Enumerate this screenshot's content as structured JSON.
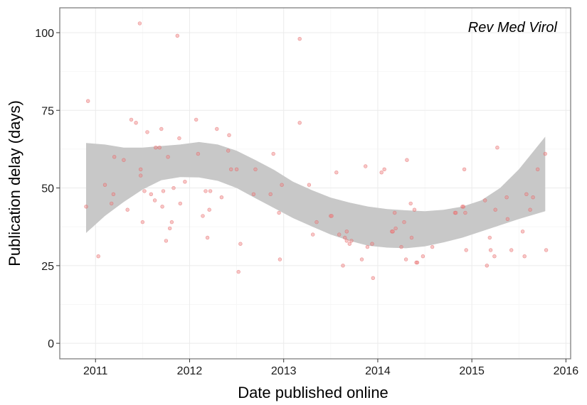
{
  "chart_data": {
    "type": "scatter",
    "title": "",
    "xlabel": "Date published online",
    "ylabel": "Publication delay (days)",
    "annotation": "Rev Med Virol",
    "xlim": [
      2010.62,
      2016.05
    ],
    "ylim": [
      -5,
      108
    ],
    "x_ticks": [
      2011,
      2012,
      2013,
      2014,
      2015,
      2016
    ],
    "x_tick_labels": [
      "2011",
      "2012",
      "2013",
      "2014",
      "2015",
      "2016"
    ],
    "y_ticks": [
      0,
      25,
      50,
      75,
      100
    ],
    "y_tick_labels": [
      "0",
      "25",
      "50",
      "75",
      "100"
    ],
    "grid": true,
    "legend": "none",
    "colors": {
      "points": "#f08080",
      "ribbon": "#c8c8c8",
      "panel_border": "#7f7f7f",
      "grid": "#ebebeb"
    },
    "points": [
      {
        "x": 2010.9,
        "y": 44
      },
      {
        "x": 2010.92,
        "y": 78
      },
      {
        "x": 2011.03,
        "y": 28
      },
      {
        "x": 2011.1,
        "y": 51
      },
      {
        "x": 2011.17,
        "y": 45
      },
      {
        "x": 2011.19,
        "y": 48
      },
      {
        "x": 2011.2,
        "y": 60
      },
      {
        "x": 2011.3,
        "y": 59
      },
      {
        "x": 2011.34,
        "y": 43
      },
      {
        "x": 2011.38,
        "y": 72
      },
      {
        "x": 2011.43,
        "y": 71
      },
      {
        "x": 2011.47,
        "y": 103
      },
      {
        "x": 2011.48,
        "y": 54
      },
      {
        "x": 2011.48,
        "y": 56
      },
      {
        "x": 2011.5,
        "y": 39
      },
      {
        "x": 2011.52,
        "y": 49
      },
      {
        "x": 2011.55,
        "y": 68
      },
      {
        "x": 2011.59,
        "y": 48
      },
      {
        "x": 2011.63,
        "y": 46
      },
      {
        "x": 2011.64,
        "y": 63
      },
      {
        "x": 2011.68,
        "y": 63
      },
      {
        "x": 2011.7,
        "y": 69
      },
      {
        "x": 2011.71,
        "y": 44
      },
      {
        "x": 2011.72,
        "y": 49
      },
      {
        "x": 2011.75,
        "y": 33
      },
      {
        "x": 2011.77,
        "y": 60
      },
      {
        "x": 2011.79,
        "y": 37
      },
      {
        "x": 2011.81,
        "y": 39
      },
      {
        "x": 2011.83,
        "y": 50
      },
      {
        "x": 2011.87,
        "y": 99
      },
      {
        "x": 2011.89,
        "y": 66
      },
      {
        "x": 2011.9,
        "y": 45
      },
      {
        "x": 2011.95,
        "y": 52
      },
      {
        "x": 2012.07,
        "y": 72
      },
      {
        "x": 2012.09,
        "y": 61
      },
      {
        "x": 2012.14,
        "y": 41
      },
      {
        "x": 2012.17,
        "y": 49
      },
      {
        "x": 2012.19,
        "y": 34
      },
      {
        "x": 2012.21,
        "y": 43
      },
      {
        "x": 2012.22,
        "y": 49
      },
      {
        "x": 2012.29,
        "y": 69
      },
      {
        "x": 2012.34,
        "y": 47
      },
      {
        "x": 2012.41,
        "y": 62
      },
      {
        "x": 2012.42,
        "y": 67
      },
      {
        "x": 2012.44,
        "y": 56
      },
      {
        "x": 2012.5,
        "y": 56
      },
      {
        "x": 2012.52,
        "y": 23
      },
      {
        "x": 2012.54,
        "y": 32
      },
      {
        "x": 2012.68,
        "y": 48
      },
      {
        "x": 2012.7,
        "y": 56
      },
      {
        "x": 2012.86,
        "y": 48
      },
      {
        "x": 2012.89,
        "y": 61
      },
      {
        "x": 2012.95,
        "y": 42
      },
      {
        "x": 2012.96,
        "y": 27
      },
      {
        "x": 2012.98,
        "y": 51
      },
      {
        "x": 2013.17,
        "y": 98
      },
      {
        "x": 2013.17,
        "y": 71
      },
      {
        "x": 2013.27,
        "y": 51
      },
      {
        "x": 2013.31,
        "y": 35
      },
      {
        "x": 2013.35,
        "y": 39
      },
      {
        "x": 2013.5,
        "y": 41
      },
      {
        "x": 2013.51,
        "y": 41
      },
      {
        "x": 2013.56,
        "y": 55
      },
      {
        "x": 2013.59,
        "y": 35
      },
      {
        "x": 2013.63,
        "y": 25
      },
      {
        "x": 2013.65,
        "y": 34
      },
      {
        "x": 2013.67,
        "y": 36
      },
      {
        "x": 2013.67,
        "y": 33
      },
      {
        "x": 2013.7,
        "y": 32
      },
      {
        "x": 2013.72,
        "y": 33
      },
      {
        "x": 2013.83,
        "y": 27
      },
      {
        "x": 2013.87,
        "y": 57
      },
      {
        "x": 2013.89,
        "y": 31
      },
      {
        "x": 2013.94,
        "y": 32
      },
      {
        "x": 2013.95,
        "y": 21
      },
      {
        "x": 2014.04,
        "y": 55
      },
      {
        "x": 2014.07,
        "y": 56
      },
      {
        "x": 2014.15,
        "y": 36
      },
      {
        "x": 2014.16,
        "y": 36
      },
      {
        "x": 2014.18,
        "y": 42
      },
      {
        "x": 2014.19,
        "y": 37
      },
      {
        "x": 2014.25,
        "y": 31
      },
      {
        "x": 2014.28,
        "y": 39
      },
      {
        "x": 2014.3,
        "y": 27
      },
      {
        "x": 2014.31,
        "y": 59
      },
      {
        "x": 2014.35,
        "y": 45
      },
      {
        "x": 2014.36,
        "y": 34
      },
      {
        "x": 2014.39,
        "y": 43
      },
      {
        "x": 2014.41,
        "y": 26
      },
      {
        "x": 2014.42,
        "y": 26
      },
      {
        "x": 2014.48,
        "y": 28
      },
      {
        "x": 2014.58,
        "y": 31
      },
      {
        "x": 2014.82,
        "y": 42
      },
      {
        "x": 2014.83,
        "y": 42
      },
      {
        "x": 2014.9,
        "y": 44
      },
      {
        "x": 2014.91,
        "y": 44
      },
      {
        "x": 2014.92,
        "y": 56
      },
      {
        "x": 2014.93,
        "y": 42
      },
      {
        "x": 2014.94,
        "y": 30
      },
      {
        "x": 2015.14,
        "y": 46
      },
      {
        "x": 2015.16,
        "y": 25
      },
      {
        "x": 2015.19,
        "y": 34
      },
      {
        "x": 2015.2,
        "y": 30
      },
      {
        "x": 2015.24,
        "y": 28
      },
      {
        "x": 2015.25,
        "y": 43
      },
      {
        "x": 2015.27,
        "y": 63
      },
      {
        "x": 2015.37,
        "y": 47
      },
      {
        "x": 2015.38,
        "y": 40
      },
      {
        "x": 2015.42,
        "y": 30
      },
      {
        "x": 2015.54,
        "y": 36
      },
      {
        "x": 2015.56,
        "y": 28
      },
      {
        "x": 2015.58,
        "y": 48
      },
      {
        "x": 2015.62,
        "y": 43
      },
      {
        "x": 2015.65,
        "y": 47
      },
      {
        "x": 2015.7,
        "y": 56
      },
      {
        "x": 2015.78,
        "y": 61
      },
      {
        "x": 2015.79,
        "y": 30
      }
    ],
    "smooth_band": {
      "x": [
        2010.9,
        2011.1,
        2011.3,
        2011.5,
        2011.7,
        2011.9,
        2012.1,
        2012.3,
        2012.5,
        2012.7,
        2012.9,
        2013.1,
        2013.3,
        2013.5,
        2013.7,
        2013.9,
        2014.1,
        2014.3,
        2014.5,
        2014.7,
        2014.9,
        2015.1,
        2015.3,
        2015.5,
        2015.78
      ],
      "upper": [
        64.5,
        64.0,
        63.0,
        63.0,
        63.5,
        64.0,
        64.8,
        64.0,
        62.0,
        59.0,
        55.8,
        52.0,
        49.3,
        46.9,
        45.3,
        44.0,
        43.2,
        42.8,
        42.5,
        43.0,
        44.0,
        46.0,
        50.0,
        56.0,
        66.5
      ],
      "lower": [
        35.5,
        41.0,
        45.5,
        49.5,
        52.5,
        53.5,
        53.4,
        52.3,
        50.0,
        46.7,
        43.5,
        40.3,
        37.6,
        35.0,
        33.0,
        31.4,
        30.8,
        30.6,
        31.2,
        32.5,
        34.0,
        36.0,
        38.0,
        40.0,
        42.5
      ]
    }
  }
}
